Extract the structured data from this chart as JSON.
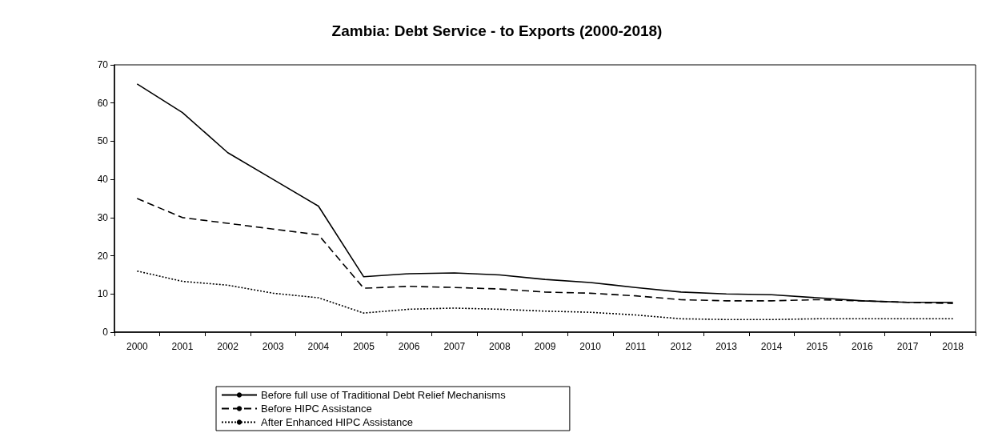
{
  "chart_data": {
    "type": "line",
    "title": "Zambia: Debt Service - to Exports (2000-2018)",
    "categories": [
      "2000",
      "2001",
      "2002",
      "2003",
      "2004",
      "2005",
      "2006",
      "2007",
      "2008",
      "2009",
      "2010",
      "2011",
      "2012",
      "2013",
      "2014",
      "2015",
      "2016",
      "2017",
      "2018"
    ],
    "series": [
      {
        "name": "Before full use of Traditional Debt Relief Mechanisms",
        "color": "#000000",
        "line_style": "solid",
        "values": [
          65,
          57.5,
          47,
          40,
          33,
          14.5,
          15.3,
          15.5,
          15,
          13.8,
          13,
          11.7,
          10.5,
          10,
          9.8,
          9,
          8.2,
          7.8,
          7.8
        ]
      },
      {
        "name": "Before HIPC Assistance",
        "color": "#000000",
        "line_style": "dashed",
        "values": [
          35,
          30,
          28.5,
          27,
          25.5,
          11.5,
          12,
          11.7,
          11.3,
          10.5,
          10.2,
          9.5,
          8.5,
          8.2,
          8.2,
          8.5,
          8.2,
          7.8,
          7.5
        ]
      },
      {
        "name": "After Enhanced HIPC Assistance",
        "color": "#000000",
        "line_style": "dotted",
        "values": [
          16,
          13.3,
          12.3,
          10.2,
          9,
          5,
          6,
          6.3,
          6,
          5.5,
          5.2,
          4.5,
          3.5,
          3.3,
          3.3,
          3.5,
          3.5,
          3.5,
          3.5
        ]
      }
    ],
    "ylim": [
      0,
      70
    ],
    "yticks": [
      0,
      10,
      20,
      30,
      40,
      50,
      60,
      70
    ],
    "grid": false,
    "legend": "bottom",
    "marker": "none"
  }
}
